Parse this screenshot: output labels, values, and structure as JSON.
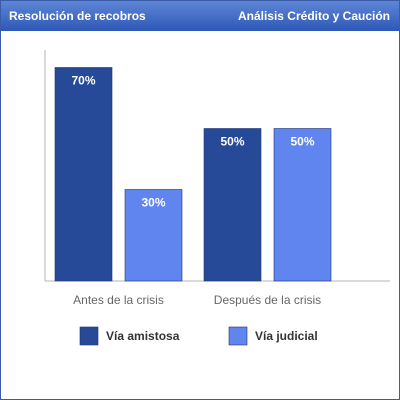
{
  "header": {
    "title_left": "Resolución de recobros",
    "title_right": "Análisis Crédito y Caución"
  },
  "chart_data": {
    "type": "bar",
    "categories": [
      "Antes de la crisis",
      "Después de la crisis"
    ],
    "series": [
      {
        "name": "Vía amistosa",
        "values": [
          70,
          50
        ],
        "color": "#274a98"
      },
      {
        "name": "Vía judicial",
        "values": [
          30,
          50
        ],
        "color": "#6185ef"
      }
    ],
    "data_labels": [
      [
        "70%",
        "50%"
      ],
      [
        "30%",
        "50%"
      ]
    ],
    "ylim": [
      0,
      80
    ],
    "grid": false,
    "legend_position": "bottom"
  }
}
